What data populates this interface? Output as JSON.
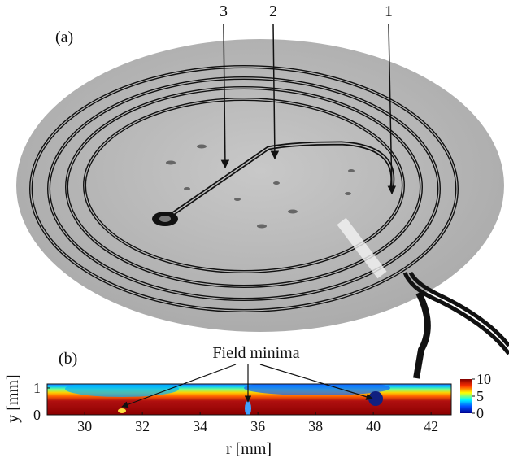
{
  "panel_a": {
    "label": "(a)",
    "markers": [
      "1",
      "2",
      "3"
    ]
  },
  "panel_b": {
    "label": "(b)",
    "annotation": "Field minima",
    "x_label": "r [mm]",
    "y_label": "y [mm]",
    "xlim": [
      28.7,
      42.7
    ],
    "xticks": [
      30,
      32,
      34,
      36,
      38,
      40,
      42
    ],
    "ylim": [
      0,
      1.15
    ],
    "yticks": [
      0,
      1
    ],
    "colorbar": {
      "lim": [
        0,
        10
      ],
      "ticks": [
        0,
        5,
        10
      ]
    }
  }
}
